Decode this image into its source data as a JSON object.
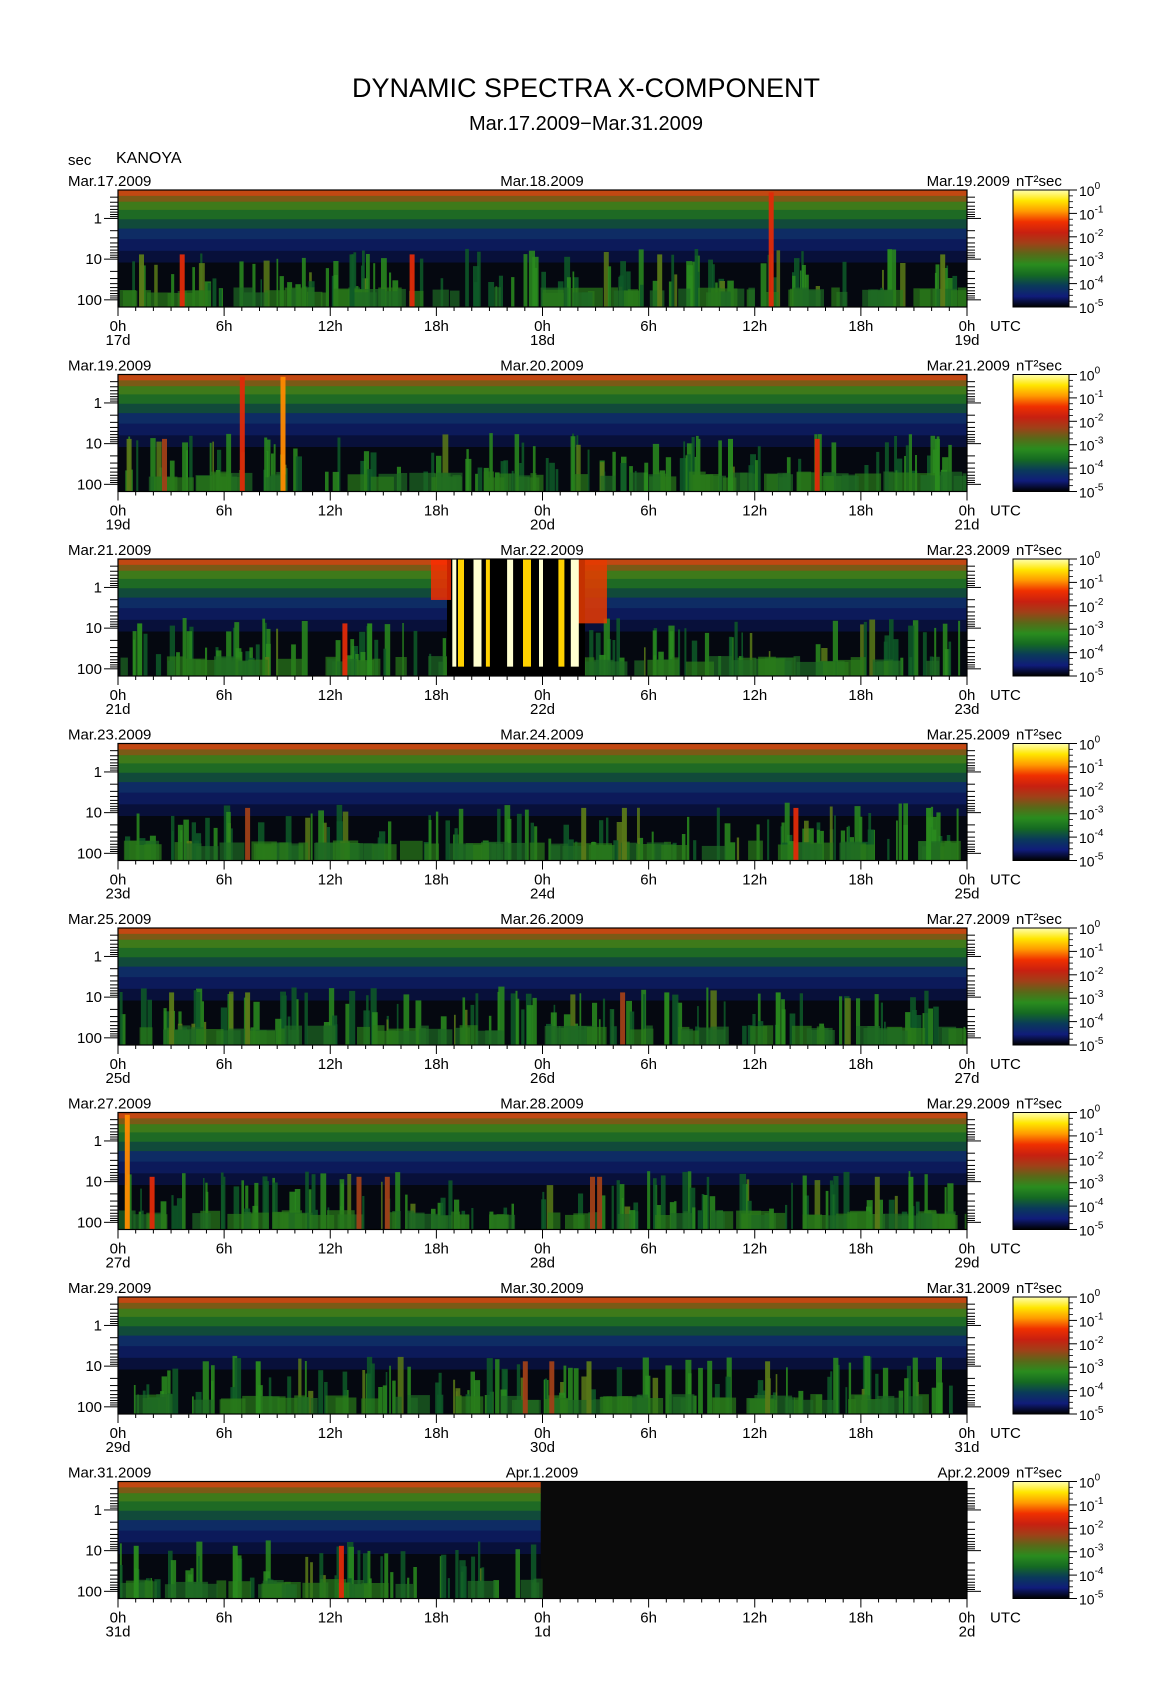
{
  "title": "DYNAMIC SPECTRA X-COMPONENT",
  "subtitle": "Mar.17.2009−Mar.31.2009",
  "ylabel": "sec",
  "station": "KANOYA",
  "utc_label": "UTC",
  "colorbar_unit": "nT²sec",
  "chart_data": {
    "type": "heatmap",
    "title": "DYNAMIC SPECTRA X-COMPONENT",
    "subtitle": "Mar.17.2009−Mar.31.2009",
    "station": "KANOYA",
    "ylabel": "sec",
    "y_scale": "log",
    "y_ticks": [
      "1",
      "10",
      "100"
    ],
    "x_ticks": [
      "0h",
      "6h",
      "12h",
      "18h",
      "0h",
      "6h",
      "12h",
      "18h",
      "0h"
    ],
    "x_unit": "UTC",
    "colorbar": {
      "unit": "nT²sec",
      "scale": "log",
      "ticks": [
        {
          "base": "10",
          "exp": "0"
        },
        {
          "base": "10",
          "exp": "-1"
        },
        {
          "base": "10",
          "exp": "-2"
        },
        {
          "base": "10",
          "exp": "-3"
        },
        {
          "base": "10",
          "exp": "-4"
        },
        {
          "base": "10",
          "exp": "-5"
        }
      ],
      "colors": [
        "#ffffb0",
        "#ffe600",
        "#ff9a00",
        "#f03000",
        "#c82010",
        "#a04018",
        "#5a6818",
        "#2a8c1e",
        "#156a22",
        "#0a3a5a",
        "#101c7a",
        "#000000"
      ]
    },
    "panels": [
      {
        "date_left": "Mar.17.2009",
        "date_mid": "Mar.18.2009",
        "date_right": "Mar.19.2009",
        "day_labels": [
          "17d",
          "18d",
          "19d"
        ],
        "data_hours": 48,
        "events": [
          {
            "h": 1.3,
            "level": 2.5
          },
          {
            "h": 3.6,
            "level": 3
          },
          {
            "h": 16.6,
            "level": 3.2
          },
          {
            "h": 13.2,
            "level": 1.5
          },
          {
            "h": 30.6,
            "level": 2.2
          },
          {
            "h": 36.9,
            "level": 3.3
          },
          {
            "h": 46.6,
            "level": 2.5
          }
        ]
      },
      {
        "date_left": "Mar.19.2009",
        "date_mid": "Mar.20.2009",
        "date_right": "Mar.21.2009",
        "day_labels": [
          "19d",
          "20d",
          "21d"
        ],
        "data_hours": 48,
        "events": [
          {
            "h": 0.6,
            "level": 2.5
          },
          {
            "h": 2.6,
            "level": 2.6
          },
          {
            "h": 7.0,
            "level": 3.3
          },
          {
            "h": 9.3,
            "level": 3.6
          },
          {
            "h": 34.6,
            "level": 1.6
          },
          {
            "h": 39.5,
            "level": 3.2
          },
          {
            "h": 46.3,
            "level": 1.8
          }
        ]
      },
      {
        "date_left": "Mar.21.2009",
        "date_mid": "Mar.22.2009",
        "date_right": "Mar.23.2009",
        "day_labels": [
          "21d",
          "22d",
          "23d"
        ],
        "data_hours": 48,
        "storm": {
          "start": 18.6,
          "end": 26.4
        },
        "events": [
          {
            "h": 12.8,
            "level": 3
          },
          {
            "h": 14.2,
            "level": 2
          },
          {
            "h": 1.2,
            "level": 1.6
          }
        ]
      },
      {
        "date_left": "Mar.23.2009",
        "date_mid": "Mar.24.2009",
        "date_right": "Mar.25.2009",
        "day_labels": [
          "23d",
          "24d",
          "25d"
        ],
        "data_hours": 48,
        "events": [
          {
            "h": 7.3,
            "level": 2.8
          },
          {
            "h": 26.3,
            "level": 2.2
          },
          {
            "h": 28.6,
            "level": 2.5
          },
          {
            "h": 38.3,
            "level": 3.2
          },
          {
            "h": 45.8,
            "level": 1.6
          }
        ]
      },
      {
        "date_left": "Mar.25.2009",
        "date_mid": "Mar.26.2009",
        "date_right": "Mar.27.2009",
        "day_labels": [
          "25d",
          "26d",
          "27d"
        ],
        "data_hours": 48,
        "events": [
          {
            "h": 3.0,
            "level": 2.4
          },
          {
            "h": 7.3,
            "level": 2.3
          },
          {
            "h": 28.5,
            "level": 2.9
          },
          {
            "h": 31.0,
            "level": 2.1
          },
          {
            "h": 37.3,
            "level": 2.0
          }
        ]
      },
      {
        "date_left": "Mar.27.2009",
        "date_mid": "Mar.28.2009",
        "date_right": "Mar.29.2009",
        "day_labels": [
          "27d",
          "28d",
          "29d"
        ],
        "data_hours": 48,
        "events": [
          {
            "h": 0.5,
            "level": 3.6
          },
          {
            "h": 1.9,
            "level": 3.2
          },
          {
            "h": 13.6,
            "level": 2.9
          },
          {
            "h": 15.2,
            "level": 2.7
          },
          {
            "h": 26.8,
            "level": 2.6
          },
          {
            "h": 27.2,
            "level": 2.8
          },
          {
            "h": 42.9,
            "level": 2.2
          },
          {
            "h": 44.8,
            "level": 2.1
          }
        ]
      },
      {
        "date_left": "Mar.29.2009",
        "date_mid": "Mar.30.2009",
        "date_right": "Mar.31.2009",
        "day_labels": [
          "29d",
          "30d",
          "31d"
        ],
        "data_hours": 48,
        "events": [
          {
            "h": 7.9,
            "level": 2.1
          },
          {
            "h": 23.0,
            "level": 2.7
          },
          {
            "h": 24.5,
            "level": 2.9
          },
          {
            "h": 26.6,
            "level": 2.5
          },
          {
            "h": 36.7,
            "level": 2.3
          }
        ]
      },
      {
        "date_left": "Mar.31.2009",
        "date_mid": "Apr.1.2009",
        "date_right": "Apr.2.2009",
        "day_labels": [
          "31d",
          "1d",
          "2d"
        ],
        "data_hours": 23.9,
        "events": [
          {
            "h": 1.0,
            "level": 2.0
          },
          {
            "h": 6.6,
            "level": 1.8
          },
          {
            "h": 12.6,
            "level": 3.0
          }
        ]
      }
    ]
  }
}
